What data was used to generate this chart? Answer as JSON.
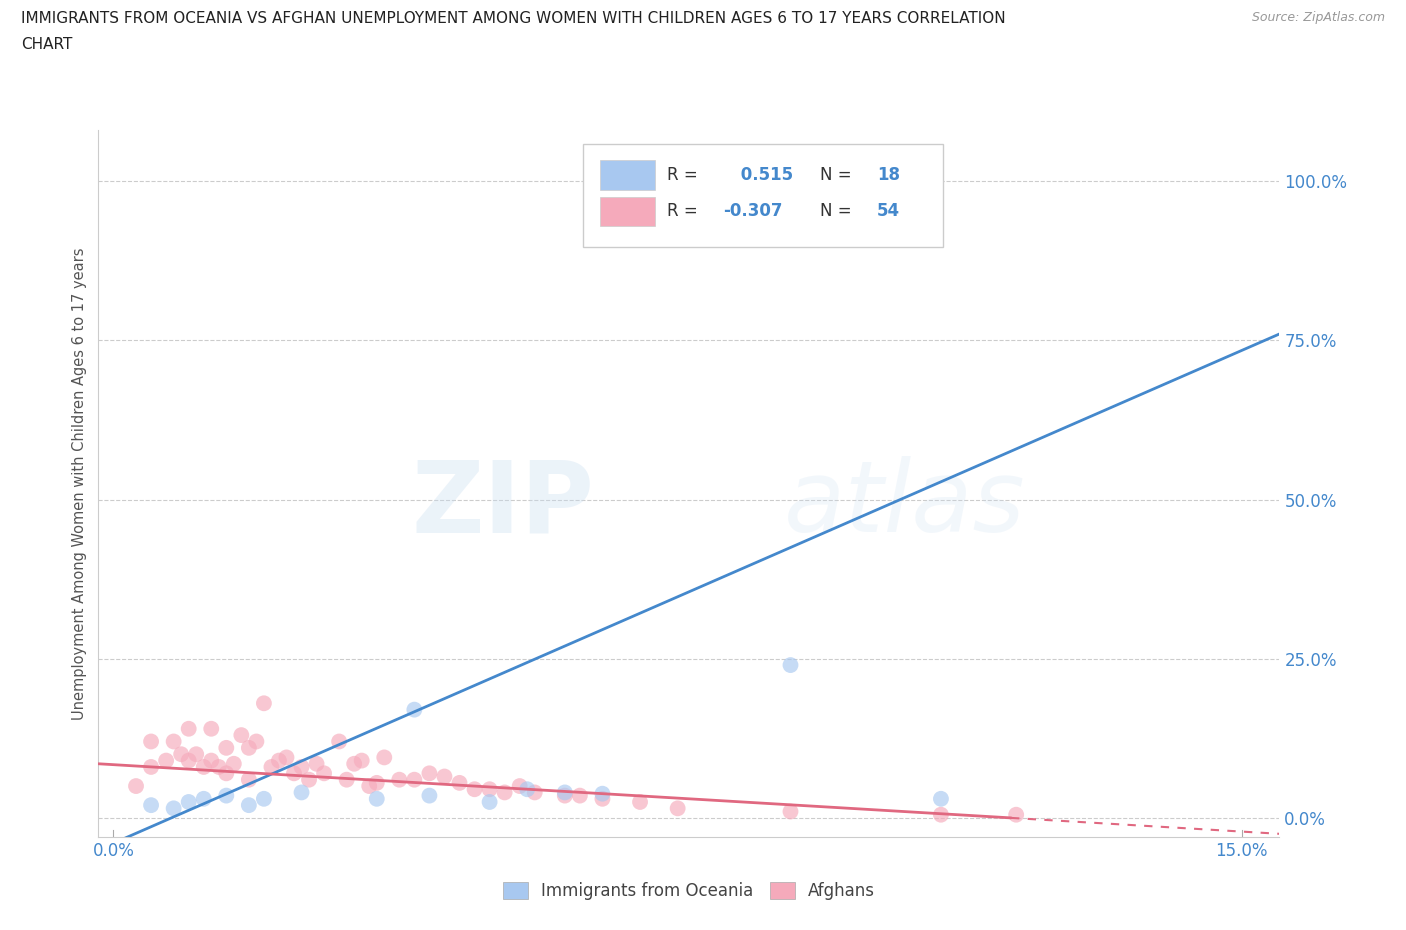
{
  "title_line1": "IMMIGRANTS FROM OCEANIA VS AFGHAN UNEMPLOYMENT AMONG WOMEN WITH CHILDREN AGES 6 TO 17 YEARS CORRELATION",
  "title_line2": "CHART",
  "source": "Source: ZipAtlas.com",
  "ylabel": "Unemployment Among Women with Children Ages 6 to 17 years",
  "watermark": "ZIPatlas",
  "blue_label": "Immigrants from Oceania",
  "pink_label": "Afghans",
  "blue_R": 0.515,
  "blue_N": 18,
  "pink_R": -0.307,
  "pink_N": 54,
  "xlim": [
    -0.002,
    0.155
  ],
  "ylim": [
    -0.03,
    1.08
  ],
  "yticks": [
    0.0,
    0.25,
    0.5,
    0.75,
    1.0
  ],
  "ytick_labels": [
    "0.0%",
    "25.0%",
    "50.0%",
    "75.0%",
    "100.0%"
  ],
  "xtick_labels_left": "0.0%",
  "xtick_right_label": "15.0%",
  "blue_color": "#a8c8f0",
  "blue_line_color": "#4488CC",
  "pink_color": "#f5aabb",
  "pink_line_color": "#e06880",
  "blue_scatter_x": [
    0.005,
    0.008,
    0.01,
    0.012,
    0.015,
    0.018,
    0.02,
    0.025,
    0.035,
    0.04,
    0.042,
    0.05,
    0.055,
    0.06,
    0.065,
    0.09,
    0.093,
    0.11
  ],
  "blue_scatter_y": [
    0.02,
    0.015,
    0.025,
    0.03,
    0.035,
    0.02,
    0.03,
    0.04,
    0.03,
    0.17,
    0.035,
    0.025,
    0.045,
    0.04,
    0.038,
    0.24,
    1.0,
    0.03
  ],
  "pink_scatter_x": [
    0.003,
    0.005,
    0.005,
    0.007,
    0.008,
    0.009,
    0.01,
    0.01,
    0.011,
    0.012,
    0.013,
    0.013,
    0.014,
    0.015,
    0.015,
    0.016,
    0.017,
    0.018,
    0.018,
    0.019,
    0.02,
    0.021,
    0.022,
    0.023,
    0.024,
    0.025,
    0.026,
    0.027,
    0.028,
    0.03,
    0.031,
    0.032,
    0.033,
    0.034,
    0.035,
    0.036,
    0.038,
    0.04,
    0.042,
    0.044,
    0.046,
    0.048,
    0.05,
    0.052,
    0.054,
    0.056,
    0.06,
    0.062,
    0.065,
    0.07,
    0.075,
    0.09,
    0.11,
    0.12
  ],
  "pink_scatter_y": [
    0.05,
    0.08,
    0.12,
    0.09,
    0.12,
    0.1,
    0.09,
    0.14,
    0.1,
    0.08,
    0.09,
    0.14,
    0.08,
    0.07,
    0.11,
    0.085,
    0.13,
    0.06,
    0.11,
    0.12,
    0.18,
    0.08,
    0.09,
    0.095,
    0.07,
    0.08,
    0.06,
    0.085,
    0.07,
    0.12,
    0.06,
    0.085,
    0.09,
    0.05,
    0.055,
    0.095,
    0.06,
    0.06,
    0.07,
    0.065,
    0.055,
    0.045,
    0.045,
    0.04,
    0.05,
    0.04,
    0.035,
    0.035,
    0.03,
    0.025,
    0.015,
    0.01,
    0.005,
    0.005
  ],
  "blue_line_x0": -0.002,
  "blue_line_x1": 0.155,
  "blue_line_y0": -0.05,
  "blue_line_y1": 0.76,
  "pink_line_x0": -0.002,
  "pink_line_x1": 0.155,
  "pink_line_y0": 0.085,
  "pink_line_y1": -0.025,
  "grid_color": "#CCCCCC",
  "bg_color": "#FFFFFF",
  "title_color": "#222222",
  "axis_label_color": "#555555",
  "tick_label_color": "#4488CC"
}
